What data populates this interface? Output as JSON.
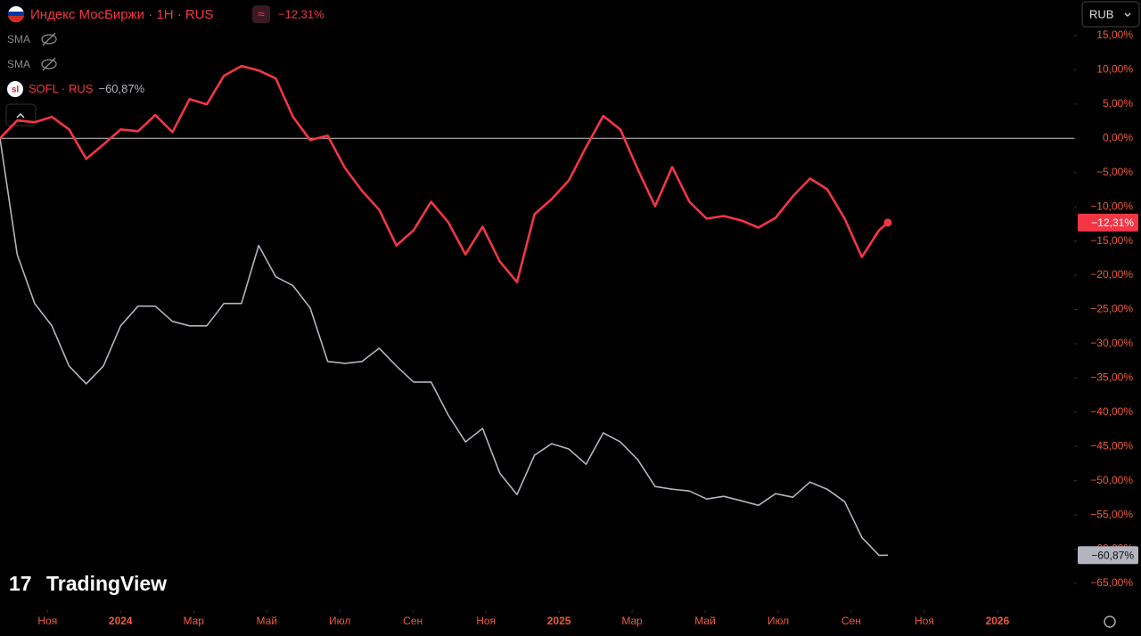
{
  "chart_data": {
    "type": "line",
    "title": "Индекс МосБиржи · 1H · RUS",
    "x": [
      -1.3,
      -0.83,
      -0.35,
      0.12,
      0.59,
      1.06,
      1.53,
      2.0,
      2.48,
      2.95,
      3.42,
      3.89,
      4.36,
      4.83,
      5.31,
      5.78,
      6.25,
      6.72,
      7.19,
      7.67,
      8.14,
      8.61,
      9.08,
      9.55,
      10.02,
      10.5,
      10.97,
      11.44,
      11.91,
      12.38,
      12.85,
      13.33,
      13.8,
      14.27,
      14.74,
      15.21,
      15.68,
      16.16,
      16.63,
      17.1,
      17.57,
      18.04,
      18.51,
      18.99,
      19.46,
      19.93,
      20.4,
      20.87,
      21.34,
      21.82,
      22.29,
      22.76,
      23.0
    ],
    "series": [
      {
        "name": "Индекс МосБиржи",
        "color": "#f23645",
        "values": [
          0,
          2.61,
          2.35,
          3.13,
          1.3,
          -3.0,
          -0.91,
          1.3,
          1.04,
          3.39,
          0.91,
          5.74,
          4.95,
          9.13,
          10.56,
          9.91,
          8.74,
          3.13,
          -0.26,
          0.39,
          -4.3,
          -7.69,
          -10.43,
          -15.65,
          -13.43,
          -9.26,
          -12.26,
          -16.95,
          -12.91,
          -17.99,
          -20.99,
          -11.08,
          -8.87,
          -6.13,
          -1.3,
          3.26,
          1.3,
          -4.56,
          -9.91,
          -4.17,
          -9.26,
          -11.73,
          -11.34,
          -11.99,
          -13.04,
          -11.6,
          -8.47,
          -5.87,
          -7.43,
          -11.73,
          -17.34,
          -13.43,
          -12.31
        ],
        "value_labels": [
          null,
          null,
          null,
          null,
          null,
          null,
          null,
          null,
          null,
          null,
          null,
          null,
          null,
          null,
          null,
          null,
          null,
          null,
          null,
          null,
          null,
          null,
          null,
          null,
          null,
          null,
          null,
          null,
          null,
          null,
          null,
          null,
          null,
          null,
          null,
          null,
          null,
          null,
          null,
          null,
          null,
          null,
          null,
          null,
          null,
          null,
          null,
          null,
          null,
          null,
          null,
          null,
          "−12,31%"
        ]
      },
      {
        "name": "SOFL · RUS",
        "color": "#b2b5be",
        "values": [
          0,
          -16.95,
          -24.12,
          -27.38,
          -33.25,
          -35.85,
          -33.25,
          -27.38,
          -24.51,
          -24.51,
          -26.73,
          -27.38,
          -27.38,
          -24.12,
          -24.12,
          -15.65,
          -20.21,
          -21.51,
          -24.77,
          -32.59,
          -32.86,
          -32.59,
          -30.64,
          -33.25,
          -35.59,
          -35.59,
          -40.42,
          -44.33,
          -42.37,
          -48.89,
          -52.02,
          -46.28,
          -44.59,
          -45.37,
          -47.59,
          -43.02,
          -44.33,
          -46.94,
          -50.85,
          -51.24,
          -51.5,
          -52.67,
          -52.28,
          -52.93,
          -53.59,
          -51.89,
          -52.41,
          -50.2,
          -51.24,
          -53.06,
          -58.28,
          -60.89,
          -60.87
        ],
        "value_labels": [
          null,
          null,
          null,
          null,
          null,
          null,
          null,
          null,
          null,
          null,
          null,
          null,
          null,
          null,
          null,
          null,
          null,
          null,
          null,
          null,
          null,
          null,
          null,
          null,
          null,
          null,
          null,
          null,
          null,
          null,
          null,
          null,
          null,
          null,
          null,
          null,
          null,
          null,
          null,
          null,
          null,
          null,
          null,
          null,
          null,
          null,
          null,
          null,
          null,
          null,
          null,
          null,
          "−60,87%"
        ]
      }
    ],
    "xlim": [
      -1.3,
      28.1
    ],
    "xticks": [
      {
        "value": 0,
        "label": "Ноя"
      },
      {
        "value": 2,
        "label": "2024"
      },
      {
        "value": 4,
        "label": "Мар"
      },
      {
        "value": 6,
        "label": "Май"
      },
      {
        "value": 8,
        "label": "Июл"
      },
      {
        "value": 10,
        "label": "Сен"
      },
      {
        "value": 12,
        "label": "Ноя"
      },
      {
        "value": 14,
        "label": "2025"
      },
      {
        "value": 16,
        "label": "Мар"
      },
      {
        "value": 18,
        "label": "Май"
      },
      {
        "value": 20,
        "label": "Июл"
      },
      {
        "value": 22,
        "label": "Сен"
      },
      {
        "value": 24,
        "label": "Ноя"
      },
      {
        "value": 26,
        "label": "2026"
      }
    ],
    "ylim": [
      -68.9,
      20.2
    ],
    "yticks": [
      {
        "value": 15,
        "label": "15,00%"
      },
      {
        "value": 10,
        "label": "10,00%"
      },
      {
        "value": 5,
        "label": "5,00%"
      },
      {
        "value": 0,
        "label": "0,00%"
      },
      {
        "value": -5,
        "label": "−5,00%"
      },
      {
        "value": -10,
        "label": "−10,00%"
      },
      {
        "value": -15,
        "label": "−15,00%"
      },
      {
        "value": -20,
        "label": "−20,00%"
      },
      {
        "value": -25,
        "label": "−25,00%"
      },
      {
        "value": -30,
        "label": "−30,00%"
      },
      {
        "value": -35,
        "label": "−35,00%"
      },
      {
        "value": -40,
        "label": "−40,00%"
      },
      {
        "value": -45,
        "label": "−45,00%"
      },
      {
        "value": -50,
        "label": "−50,00%"
      },
      {
        "value": -55,
        "label": "−55,00%"
      },
      {
        "value": -60,
        "label": "−60,00%"
      },
      {
        "value": -65,
        "label": "−65,00%"
      }
    ],
    "grid": false
  },
  "ui": {
    "currency": "RUB",
    "indicators": [
      "SMA",
      "SMA"
    ],
    "watermark": "TradingView",
    "compare_symbol": "≈"
  }
}
